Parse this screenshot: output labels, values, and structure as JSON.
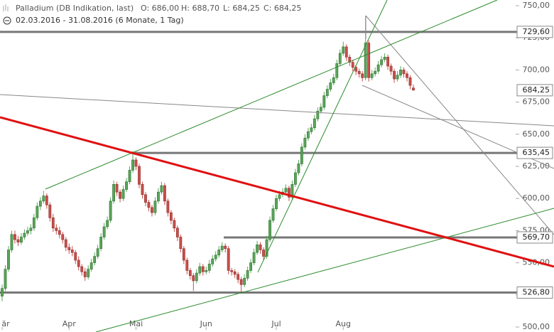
{
  "chart_data": {
    "type": "candlestick",
    "title": "Palladium (DB Indikation, last)",
    "ohlc_header": [
      "O: 686,00",
      "H: 688,70",
      "L: 684,25",
      "C: 684,25"
    ],
    "subtitle": "02.03.2016 - 31.08.2016 (6 Monate, 1 Tag)",
    "up_color": "#5aa65a",
    "down_color": "#c9504c",
    "categories": [
      "är",
      null,
      null,
      null,
      null,
      null,
      null,
      null,
      null,
      null,
      null,
      null,
      null,
      null,
      null,
      null,
      null,
      null,
      null,
      null,
      null,
      "Apr",
      null,
      null,
      null,
      null,
      null,
      null,
      null,
      null,
      null,
      null,
      null,
      null,
      null,
      null,
      null,
      null,
      null,
      null,
      null,
      null,
      "Mai",
      null,
      null,
      null,
      null,
      null,
      null,
      null,
      null,
      null,
      null,
      null,
      null,
      null,
      null,
      null,
      null,
      null,
      null,
      null,
      null,
      null,
      "Jun",
      null,
      null,
      null,
      null,
      null,
      null,
      null,
      null,
      null,
      null,
      null,
      null,
      null,
      null,
      null,
      null,
      null,
      null,
      null,
      null,
      null,
      "Jul",
      null,
      null,
      null,
      null,
      null,
      null,
      null,
      null,
      null,
      null,
      null,
      null,
      null,
      null,
      null,
      null,
      null,
      null,
      null,
      null,
      "Aug",
      null,
      null,
      null,
      null,
      null,
      null,
      null,
      null,
      null,
      null,
      null,
      null,
      null,
      null,
      null,
      null,
      null,
      null,
      null,
      null,
      null,
      null
    ],
    "ohlc": [
      [
        524,
        533,
        520,
        530
      ],
      [
        530,
        548,
        528,
        545
      ],
      [
        545,
        563,
        543,
        560
      ],
      [
        560,
        575,
        558,
        572
      ],
      [
        572,
        575,
        565,
        568
      ],
      [
        568,
        571,
        563,
        566
      ],
      [
        566,
        573,
        564,
        570
      ],
      [
        570,
        576,
        568,
        573
      ],
      [
        573,
        578,
        571,
        575
      ],
      [
        575,
        580,
        572,
        577
      ],
      [
        577,
        588,
        575,
        585
      ],
      [
        585,
        597,
        583,
        594
      ],
      [
        594,
        601,
        591,
        598
      ],
      [
        598,
        606,
        596,
        602
      ],
      [
        602,
        604,
        592,
        595
      ],
      [
        595,
        597,
        582,
        585
      ],
      [
        585,
        588,
        574,
        577
      ],
      [
        577,
        580,
        572,
        575
      ],
      [
        575,
        578,
        569,
        572
      ],
      [
        572,
        574,
        565,
        568
      ],
      [
        568,
        570,
        559,
        562
      ],
      [
        562,
        565,
        557,
        560
      ],
      [
        560,
        563,
        555,
        558
      ],
      [
        558,
        560,
        549,
        552
      ],
      [
        552,
        555,
        544,
        547
      ],
      [
        547,
        549,
        540,
        543
      ],
      [
        543,
        546,
        536,
        539
      ],
      [
        539,
        548,
        537,
        545
      ],
      [
        545,
        553,
        543,
        550
      ],
      [
        550,
        558,
        548,
        555
      ],
      [
        555,
        564,
        553,
        561
      ],
      [
        561,
        573,
        559,
        570
      ],
      [
        570,
        581,
        568,
        578
      ],
      [
        578,
        586,
        576,
        583
      ],
      [
        583,
        601,
        581,
        598
      ],
      [
        598,
        614,
        596,
        611
      ],
      [
        611,
        613,
        602,
        605
      ],
      [
        605,
        607,
        597,
        600
      ],
      [
        600,
        610,
        598,
        607
      ],
      [
        607,
        616,
        605,
        613
      ],
      [
        613,
        625,
        611,
        622
      ],
      [
        622,
        637,
        620,
        630
      ],
      [
        630,
        632,
        622,
        625
      ],
      [
        625,
        627,
        608,
        611
      ],
      [
        611,
        613,
        600,
        603
      ],
      [
        603,
        605,
        594,
        597
      ],
      [
        597,
        599,
        590,
        593
      ],
      [
        593,
        595,
        586,
        589
      ],
      [
        589,
        601,
        587,
        598
      ],
      [
        598,
        608,
        596,
        605
      ],
      [
        605,
        613,
        603,
        610
      ],
      [
        610,
        612,
        595,
        598
      ],
      [
        598,
        600,
        586,
        589
      ],
      [
        589,
        591,
        580,
        583
      ],
      [
        583,
        585,
        574,
        577
      ],
      [
        577,
        579,
        567,
        570
      ],
      [
        570,
        572,
        558,
        561
      ],
      [
        561,
        563,
        549,
        552
      ],
      [
        552,
        554,
        541,
        544
      ],
      [
        544,
        546,
        537,
        540
      ],
      [
        540,
        542,
        528,
        536
      ],
      [
        536,
        545,
        534,
        542
      ],
      [
        542,
        550,
        540,
        547
      ],
      [
        547,
        549,
        540,
        543
      ],
      [
        543,
        547,
        541,
        544
      ],
      [
        544,
        552,
        542,
        549
      ],
      [
        549,
        556,
        547,
        553
      ],
      [
        553,
        559,
        551,
        556
      ],
      [
        556,
        563,
        554,
        560
      ],
      [
        560,
        566,
        558,
        563
      ],
      [
        563,
        565,
        558,
        561
      ],
      [
        561,
        563,
        541,
        544
      ],
      [
        544,
        546,
        540,
        543
      ],
      [
        543,
        545,
        538,
        541
      ],
      [
        541,
        543,
        534,
        537
      ],
      [
        537,
        539,
        527,
        533
      ],
      [
        533,
        541,
        531,
        538
      ],
      [
        538,
        547,
        536,
        544
      ],
      [
        544,
        553,
        542,
        550
      ],
      [
        550,
        561,
        548,
        558
      ],
      [
        558,
        567,
        556,
        564
      ],
      [
        564,
        566,
        557,
        560
      ],
      [
        560,
        562,
        552,
        555
      ],
      [
        555,
        571,
        553,
        568
      ],
      [
        568,
        586,
        566,
        583
      ],
      [
        583,
        595,
        581,
        592
      ],
      [
        592,
        603,
        590,
        600
      ],
      [
        600,
        606,
        598,
        603
      ],
      [
        603,
        608,
        601,
        605
      ],
      [
        605,
        611,
        603,
        608
      ],
      [
        608,
        610,
        598,
        601
      ],
      [
        601,
        614,
        599,
        611
      ],
      [
        611,
        623,
        609,
        620
      ],
      [
        620,
        630,
        618,
        627
      ],
      [
        627,
        643,
        625,
        640
      ],
      [
        640,
        650,
        638,
        647
      ],
      [
        647,
        655,
        645,
        652
      ],
      [
        652,
        658,
        650,
        655
      ],
      [
        655,
        665,
        653,
        662
      ],
      [
        662,
        671,
        660,
        668
      ],
      [
        668,
        674,
        666,
        671
      ],
      [
        671,
        683,
        669,
        680
      ],
      [
        680,
        688,
        678,
        685
      ],
      [
        685,
        693,
        683,
        690
      ],
      [
        690,
        697,
        688,
        694
      ],
      [
        694,
        708,
        692,
        705
      ],
      [
        705,
        716,
        703,
        713
      ],
      [
        713,
        722,
        711,
        718
      ],
      [
        718,
        720,
        707,
        710
      ],
      [
        710,
        712,
        703,
        706
      ],
      [
        706,
        708,
        699,
        702
      ],
      [
        702,
        704,
        696,
        699
      ],
      [
        699,
        701,
        694,
        697
      ],
      [
        697,
        699,
        691,
        694
      ],
      [
        694,
        742,
        692,
        721
      ],
      [
        721,
        723,
        691,
        694
      ],
      [
        694,
        700,
        692,
        697
      ],
      [
        697,
        702,
        695,
        699
      ],
      [
        699,
        707,
        697,
        704
      ],
      [
        704,
        711,
        702,
        708
      ],
      [
        708,
        713,
        706,
        710
      ],
      [
        710,
        712,
        700,
        703
      ],
      [
        703,
        705,
        696,
        699
      ],
      [
        699,
        701,
        690,
        693
      ],
      [
        693,
        699,
        691,
        696
      ],
      [
        696,
        703,
        694,
        700
      ],
      [
        700,
        702,
        694,
        697
      ],
      [
        697,
        699,
        691,
        694
      ],
      [
        694,
        696,
        685,
        688
      ],
      [
        686,
        688.7,
        684.25,
        684.25
      ]
    ],
    "ylim": [
      500,
      750
    ],
    "yticks": [
      {
        "value": 500,
        "label": "500,00"
      },
      {
        "value": 525,
        "label": "525,00"
      },
      {
        "value": 550,
        "label": "550,00"
      },
      {
        "value": 575,
        "label": "575,00"
      },
      {
        "value": 600,
        "label": "600,00"
      },
      {
        "value": 625,
        "label": "625,00"
      },
      {
        "value": 650,
        "label": "650,00"
      },
      {
        "value": 675,
        "label": "675,00"
      },
      {
        "value": 700,
        "label": "700,00"
      },
      {
        "value": 725,
        "label": "725,00"
      },
      {
        "value": 750,
        "label": "750,00"
      }
    ],
    "levels": [
      {
        "value": 729.6,
        "label": "729,60"
      },
      {
        "value": 635.45,
        "label": "635,45"
      },
      {
        "value": 569.7,
        "label": "569,70"
      },
      {
        "value": 526.8,
        "label": "526,80"
      }
    ],
    "last": {
      "value": 684.25,
      "label": "684,25"
    }
  }
}
